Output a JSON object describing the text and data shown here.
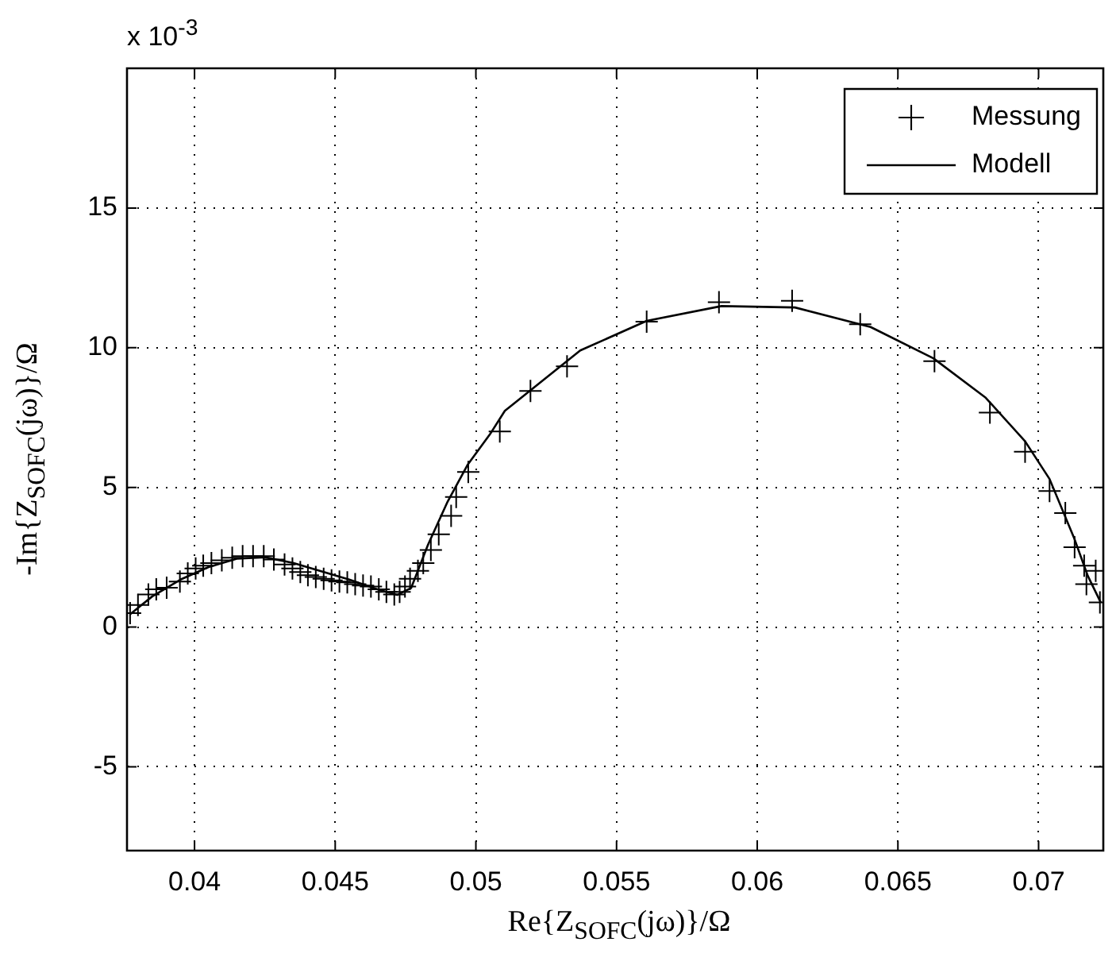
{
  "chart_data": {
    "type": "scatter",
    "xlabel": "Re{Z$_{SOFC}$(jω)}/Ω",
    "ylabel": "-Im{Z$_{SOFC}$(jω)}/Ω",
    "annotations": [
      "x 10$^{-3}$"
    ],
    "xlim": [
      0.0376,
      0.0723
    ],
    "xticks": [
      0.04,
      0.045,
      0.05,
      0.055,
      0.06,
      0.065,
      0.07
    ],
    "ylim": [
      -8,
      20
    ],
    "yticks": [
      -5,
      0,
      5,
      10,
      15
    ],
    "grid": true,
    "legend": "top right",
    "series": [
      {
        "name": "Messung",
        "marker": "cross",
        "color": "#000000",
        "x": [
          0.03771,
          0.03799,
          0.03836,
          0.03864,
          0.03901,
          0.03948,
          0.03976,
          0.04004,
          0.04031,
          0.0406,
          0.04097,
          0.04134,
          0.04171,
          0.04208,
          0.04246,
          0.04282,
          0.0432,
          0.04348,
          0.04376,
          0.04403,
          0.04431,
          0.04459,
          0.04487,
          0.04515,
          0.04543,
          0.04571,
          0.04599,
          0.04627,
          0.04655,
          0.04682,
          0.0471,
          0.04729,
          0.04748,
          0.04766,
          0.04794,
          0.04813,
          0.0484,
          0.04868,
          0.04912,
          0.0493,
          0.04973,
          0.05085,
          0.05194,
          0.05324,
          0.05607,
          0.05864,
          0.06124,
          0.06366,
          0.0663,
          0.06827,
          0.06952,
          0.07039,
          0.07095,
          0.07128,
          0.07162,
          0.0717,
          0.07203,
          0.07218
        ],
        "values": [
          0.5,
          0.79,
          1.17,
          1.35,
          1.41,
          1.63,
          1.92,
          2.1,
          2.2,
          2.29,
          2.39,
          2.48,
          2.54,
          2.54,
          2.54,
          2.42,
          2.24,
          2.1,
          1.97,
          1.86,
          1.79,
          1.73,
          1.67,
          1.63,
          1.6,
          1.54,
          1.49,
          1.45,
          1.35,
          1.26,
          1.17,
          1.26,
          1.45,
          1.73,
          2.01,
          2.29,
          2.76,
          3.32,
          3.98,
          4.66,
          5.55,
          7.0,
          8.45,
          9.33,
          10.93,
          11.63,
          11.68,
          10.84,
          9.52,
          7.68,
          6.28,
          4.87,
          4.08,
          2.86,
          2.2,
          1.54,
          2.01,
          0.88
        ]
      },
      {
        "name": "Modell",
        "type": "line",
        "marker": "none",
        "line_style": "solid",
        "color": "#000000",
        "x": [
          0.0377,
          0.0385,
          0.0395,
          0.0405,
          0.0415,
          0.0425,
          0.0435,
          0.0445,
          0.0455,
          0.0465,
          0.0472,
          0.0477,
          0.0483,
          0.049,
          0.0497,
          0.0505,
          0.05103,
          0.05371,
          0.05607,
          0.05873,
          0.06134,
          0.06403,
          0.06626,
          0.06812,
          0.06952,
          0.07039,
          0.07128,
          0.07175,
          0.07221
        ],
        "values": [
          0.45,
          1.1,
          1.7,
          2.15,
          2.45,
          2.5,
          2.3,
          2.0,
          1.7,
          1.35,
          1.15,
          1.4,
          2.95,
          4.5,
          5.8,
          6.9,
          7.74,
          9.9,
          10.96,
          11.49,
          11.44,
          10.74,
          9.62,
          8.21,
          6.65,
          5.3,
          3.14,
          1.83,
          0.88
        ]
      }
    ]
  }
}
